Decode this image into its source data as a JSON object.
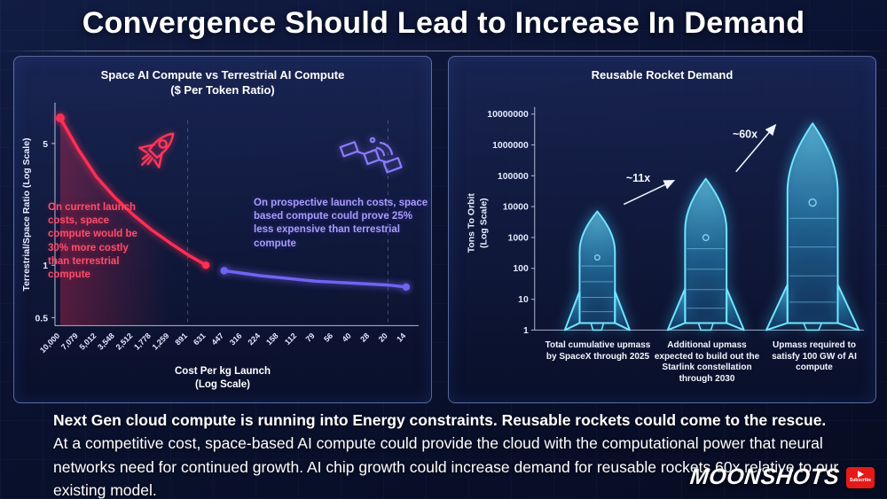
{
  "page_title": "Convergence Should Lead to Increase In Demand",
  "left_panel": {
    "title": "Space AI Compute vs Terrestrial AI Compute",
    "subtitle": "($ Per Token Ratio)",
    "y_axis_label": "Terrestrial/Space Ratio (Log Scale)",
    "x_axis_label": "Cost Per kg Launch",
    "x_axis_label2": "(Log Scale)",
    "annotation_current": "On current launch costs, space compute would be 30% more costly than terrestrial compute",
    "annotation_prospective": "On prospective launch costs, space based compute could prove 25% less expensive than terrestrial compute",
    "icons": [
      "rocket-icon",
      "satellite-icon"
    ]
  },
  "right_panel": {
    "title": "Reusable Rocket Demand",
    "y_axis_label_line1": "Tons To Orbit",
    "y_axis_label_line2": "(Log Scale)"
  },
  "footer": {
    "lead": "Next Gen cloud compute is running into Energy constraints. Reusable rockets could come to the rescue.",
    "body": "At a competitive cost, space-based AI compute could provide the cloud with the computational power that neural networks need for continued growth. AI chip growth could increase demand for reusable rockets 60x relative to our existing model."
  },
  "branding": {
    "channel": "MOONSHOTS",
    "subscribe_label": "Subscribe",
    "icon": "subscribe-play-icon"
  },
  "colors": {
    "red_series": "#ff2e55",
    "purple_series": "#7263f2",
    "cyan_rocket": "#5fe2ff",
    "background": "#0a1130",
    "panel_border": "#8fa8e0"
  },
  "chart_data": [
    {
      "type": "line",
      "title": "Space AI Compute vs Terrestrial AI Compute ($ Per Token Ratio)",
      "xlabel": "Cost Per kg Launch (Log Scale)",
      "ylabel": "Terrestrial/Space Ratio (Log Scale)",
      "x_ticks": [
        "10,000",
        "7,079",
        "5,012",
        "3,548",
        "2,512",
        "1,778",
        "1,259",
        "891",
        "631",
        "447",
        "316",
        "224",
        "158",
        "112",
        "79",
        "56",
        "40",
        "28",
        "20",
        "14"
      ],
      "y_ticks": [
        5,
        1,
        0.5
      ],
      "y_range_log": [
        0.45,
        8
      ],
      "grid": false,
      "series": [
        {
          "name": "current-launch-costs",
          "color": "#ff2e55",
          "x": [
            "10,000",
            "7,079",
            "5,012",
            "3,548",
            "2,512",
            "1,778",
            "1,259",
            "891",
            "631"
          ],
          "values": [
            7.0,
            4.6,
            3.2,
            2.45,
            1.95,
            1.6,
            1.35,
            1.15,
            1.0
          ]
        },
        {
          "name": "prospective-launch-costs",
          "color": "#7263f2",
          "x": [
            "447",
            "316",
            "224",
            "158",
            "112",
            "79",
            "56",
            "40",
            "28",
            "20",
            "14"
          ],
          "values": [
            0.93,
            0.9,
            0.87,
            0.85,
            0.83,
            0.81,
            0.8,
            0.79,
            0.78,
            0.77,
            0.75
          ]
        }
      ],
      "annotations": [
        {
          "text": "On current launch costs, space compute would be 30% more costly than terrestrial compute",
          "color": "#ff4d6b"
        },
        {
          "text": "On prospective launch costs, space based compute could prove 25% less expensive than terrestrial compute",
          "color": "#a99bff"
        }
      ]
    },
    {
      "type": "bar",
      "title": "Reusable Rocket Demand",
      "ylabel": "Tons To Orbit (Log Scale)",
      "y_ticks": [
        10000000,
        1000000,
        100000,
        10000,
        1000,
        100,
        10,
        1
      ],
      "ylim": [
        1,
        10000000
      ],
      "categories": [
        "Total cumulative upmass by SpaceX through 2025",
        "Additional upmass expected to build out the Starlink constellation through 2030",
        "Upmass required to satisfy 100 GW of AI compute"
      ],
      "values": [
        7000,
        80000,
        5000000
      ],
      "growth_labels": [
        "~11x",
        "~60x"
      ],
      "grid": false,
      "legend": false
    }
  ]
}
